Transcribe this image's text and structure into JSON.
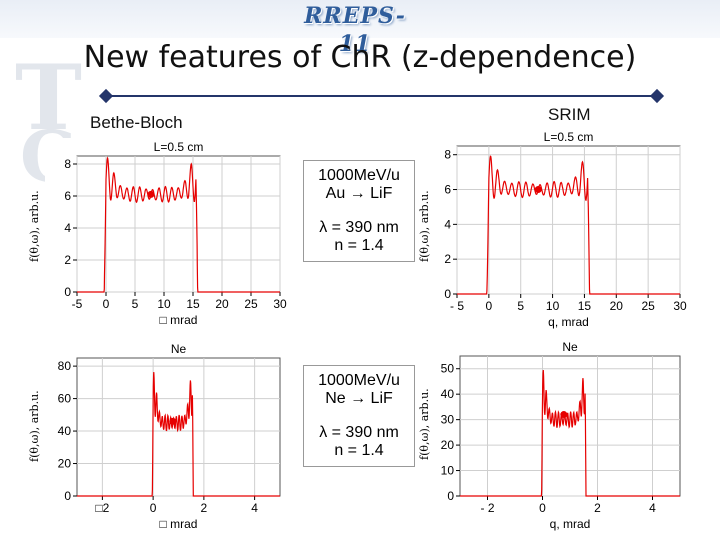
{
  "header": {
    "logo_text": "RREPS-11"
  },
  "slide": {
    "title": "New features of ChR (z-dependence)",
    "label_left": "Bethe-Bloch",
    "label_right": "SRIM"
  },
  "notes": {
    "top": {
      "line1": "1000MeV/u",
      "line2": "Au → LiF",
      "line3": "λ = 390 nm",
      "line4": "n = 1.4"
    },
    "bottom": {
      "line1": "1000MeV/u",
      "line2": "Ne → LiF",
      "line3": "λ = 390 nm",
      "line4": "n = 1.4"
    }
  },
  "colors": {
    "curve": "#e60000",
    "axis": "#000000",
    "grid": "#cfcfcf",
    "accent": "#24356a"
  },
  "chart_data": [
    {
      "id": "top_left",
      "type": "line",
      "title": "L=0.5 cm",
      "xlabel": "□ mrad",
      "ylabel": "f(θ,ω), arb.u.",
      "xlim": [
        -5,
        30
      ],
      "ylim": [
        0,
        8.5
      ],
      "xticks": [
        -5,
        0,
        5,
        10,
        15,
        20,
        25,
        30
      ],
      "xtick_labels": [
        "-5",
        "0",
        "5",
        "10",
        "15",
        "20",
        "25",
        "30"
      ],
      "yticks": [
        0,
        2,
        4,
        6,
        8
      ],
      "ytick_labels": [
        "0",
        "2",
        "4",
        "6",
        "8"
      ],
      "grid": true,
      "series": [
        {
          "shape": "plateau",
          "edges": [
            0,
            15.5
          ],
          "plateau": 6.1,
          "edge_peak": 7.8,
          "oscillation": 1.4,
          "center_value": 6.1
        }
      ]
    },
    {
      "id": "top_right",
      "type": "line",
      "title": "L=0.5 cm",
      "xlabel": "q, mrad",
      "ylabel": "f(θ,ω), arb.u.",
      "xlim": [
        -5,
        30
      ],
      "ylim": [
        0,
        8.5
      ],
      "xticks": [
        -5,
        0,
        5,
        10,
        15,
        20,
        25,
        30
      ],
      "xtick_labels": [
        "- 5",
        "0",
        "5",
        "10",
        "15",
        "20",
        "25",
        "30"
      ],
      "yticks": [
        0,
        2,
        4,
        6,
        8
      ],
      "ytick_labels": [
        "0",
        "2",
        "4",
        "6",
        "8"
      ],
      "grid": true,
      "series": [
        {
          "shape": "plateau",
          "edges": [
            0,
            15.5
          ],
          "plateau": 6.0,
          "edge_peak": 7.2,
          "oscillation": 1.3,
          "center_value": 6.0
        }
      ]
    },
    {
      "id": "bottom_left",
      "type": "line",
      "title": "Ne",
      "xlabel": "□ mrad",
      "ylabel": "f(θ,ω), arb.u.",
      "xlim": [
        -3,
        5
      ],
      "ylim": [
        0,
        85
      ],
      "xticks": [
        -2,
        0,
        2,
        4
      ],
      "xtick_labels": [
        "□2",
        "0",
        "2",
        "4"
      ],
      "yticks": [
        0,
        20,
        40,
        60,
        80
      ],
      "ytick_labels": [
        "0",
        "20",
        "40",
        "60",
        "80"
      ],
      "grid": true,
      "series": [
        {
          "shape": "plateau",
          "edges": [
            0,
            1.55
          ],
          "plateau": 45,
          "edge_peak": 78,
          "oscillation": 14,
          "center_value": 46
        }
      ]
    },
    {
      "id": "bottom_right",
      "type": "line",
      "title": "Ne",
      "xlabel": "q, mrad",
      "ylabel": "f(θ,ω), arb.u.",
      "xlim": [
        -3,
        5
      ],
      "ylim": [
        0,
        55
      ],
      "xticks": [
        -2,
        0,
        2,
        4
      ],
      "xtick_labels": [
        "- 2",
        "0",
        "2",
        "4"
      ],
      "yticks": [
        0,
        10,
        20,
        30,
        40,
        50
      ],
      "ytick_labels": [
        "0",
        "10",
        "20",
        "30",
        "40",
        "50"
      ],
      "grid": true,
      "series": [
        {
          "shape": "plateau",
          "edges": [
            0,
            1.55
          ],
          "plateau": 30,
          "edge_peak": 50,
          "oscillation": 9,
          "center_value": 32
        }
      ]
    }
  ]
}
